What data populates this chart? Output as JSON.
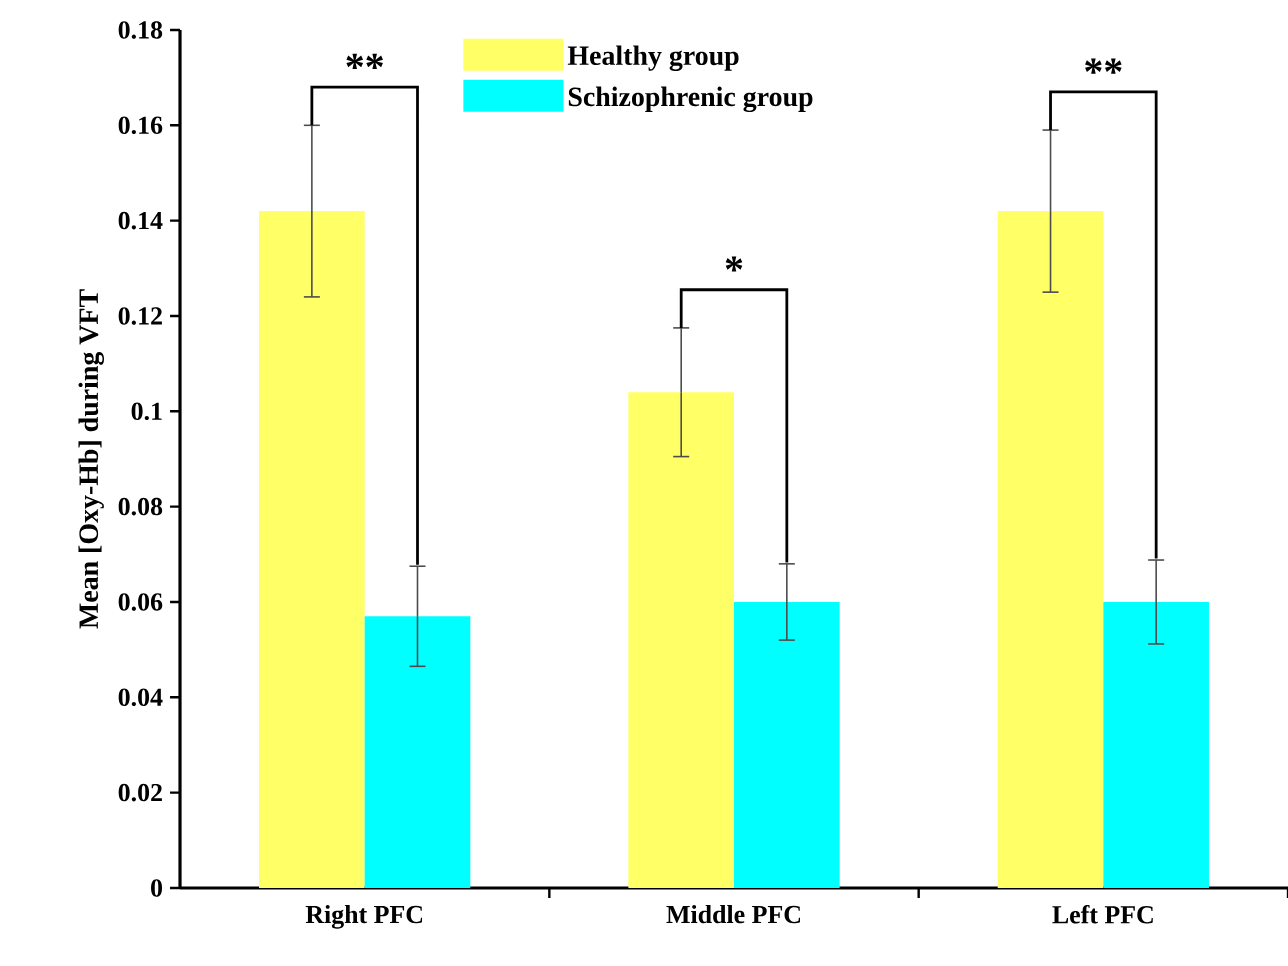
{
  "chart_data": {
    "type": "bar",
    "ylabel": "Mean [Oxy-Hb] during VFT",
    "categories": [
      "Right PFC",
      "Middle PFC",
      "Left PFC"
    ],
    "series": [
      {
        "name": "Healthy group",
        "color": "#ffff66",
        "values": [
          0.142,
          0.104,
          0.142
        ],
        "errors": [
          0.018,
          0.0135,
          0.017
        ]
      },
      {
        "name": "Schizophrenic group",
        "color": "#00ffff",
        "values": [
          0.057,
          0.06,
          0.06
        ],
        "errors": [
          0.0105,
          0.008,
          0.0088
        ]
      }
    ],
    "ylim": [
      0,
      0.18
    ],
    "yticks": [
      0,
      0.02,
      0.04,
      0.06,
      0.08,
      0.1,
      0.12,
      0.14,
      0.16,
      0.18
    ],
    "legend": "top",
    "grid": false,
    "annotations": [
      "**",
      "*",
      "**"
    ]
  }
}
